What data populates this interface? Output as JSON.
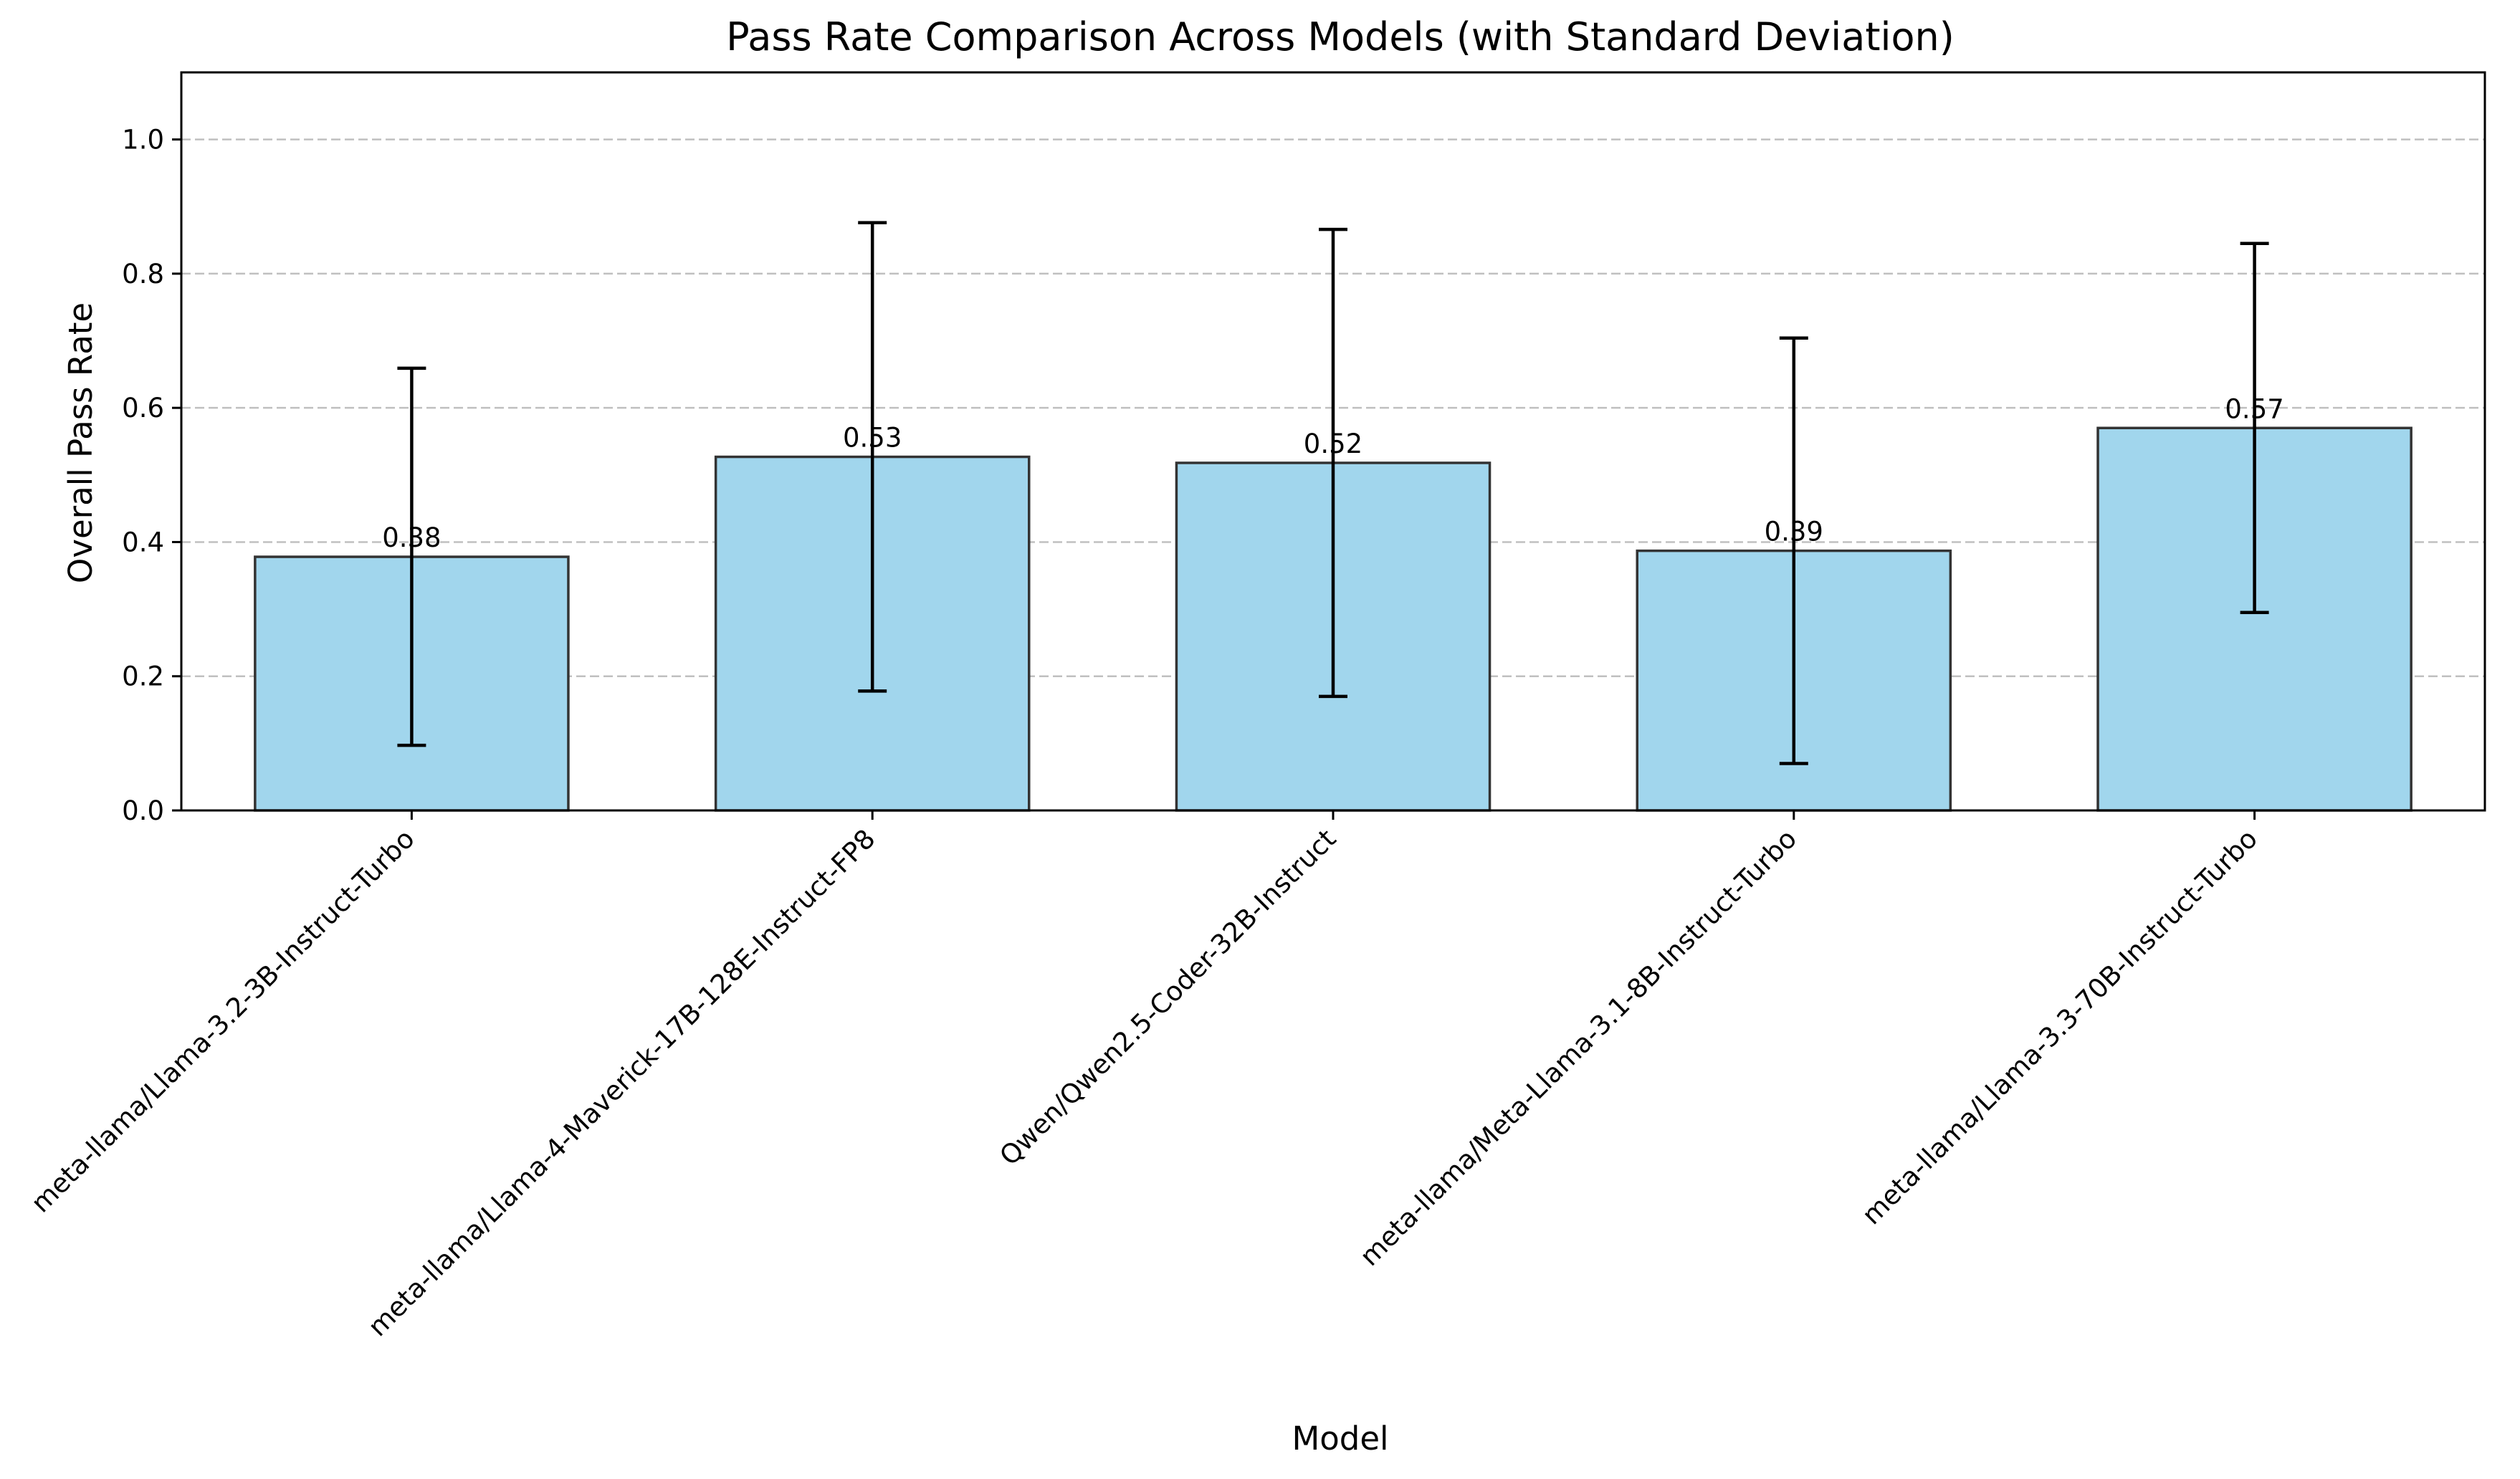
{
  "chart_data": {
    "type": "bar",
    "title": "Pass Rate Comparison Across Models (with Standard Deviation)",
    "xlabel": "Model",
    "ylabel": "Overall Pass Rate",
    "categories": [
      "meta-llama/Llama-3.2-3B-Instruct-Turbo",
      "meta-llama/Llama-4-Maverick-17B-128E-Instruct-FP8",
      "Qwen/Qwen2.5-Coder-32B-Instruct",
      "meta-llama/Meta-Llama-3.1-8B-Instruct-Turbo",
      "meta-llama/Llama-3.3-70B-Instruct-Turbo"
    ],
    "values": [
      0.378,
      0.527,
      0.518,
      0.387,
      0.57
    ],
    "errors": [
      0.281,
      0.349,
      0.348,
      0.317,
      0.275
    ],
    "value_labels": [
      "0.38",
      "0.53",
      "0.52",
      "0.39",
      "0.57"
    ],
    "ylim": [
      0,
      1.1
    ],
    "yticks": [
      0.0,
      0.2,
      0.4,
      0.6,
      0.8,
      1.0
    ],
    "ytick_labels": [
      "0.0",
      "0.2",
      "0.4",
      "0.6",
      "0.8",
      "1.0"
    ],
    "grid": "y-dashed",
    "legend": "none",
    "colors": {
      "bar_fill": "#a1d6ed",
      "bar_edge": "#333333",
      "error_bar": "#000000",
      "grid": "#c0c0c0",
      "axis": "#000000"
    }
  }
}
